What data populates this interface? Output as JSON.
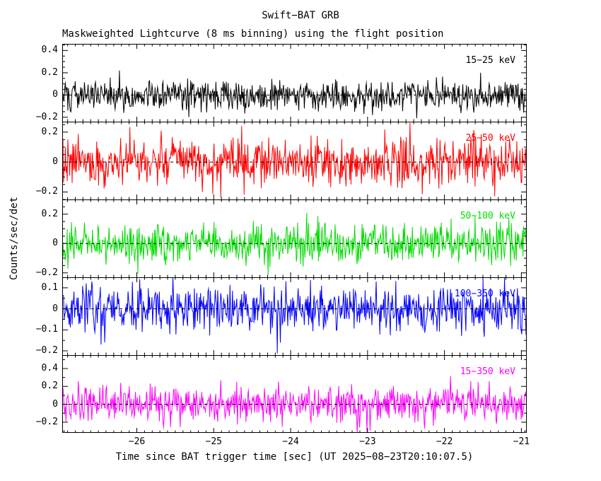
{
  "title": "Swift−BAT GRB",
  "subtitle": "Maskweighted Lightcurve (8 ms binning) using the flight position",
  "xlabel": "Time since BAT trigger time [sec] (UT 2025−08−23T20:10:07.5)",
  "ylabel": "Counts/sec/det",
  "chart_data": {
    "type": "line",
    "title": "Swift−BAT GRB",
    "subtitle": "Maskweighted Lightcurve (8 ms binning) using the flight position",
    "xlabel": "Time since BAT trigger time [sec] (UT 2025−08−23T20:10:07.5)",
    "ylabel": "Counts/sec/det",
    "x_range": [
      -26.97,
      -20.93
    ],
    "x_ticks": [
      -26,
      -25,
      -24,
      -23,
      -22,
      -21
    ],
    "x_minor_step": 0.1,
    "bin_sec": 0.008,
    "grid": false,
    "legend_position": "inside-top-right-per-panel",
    "zero_line": {
      "style": "dashed",
      "color": "#000000",
      "value": 0
    },
    "panels": [
      {
        "label": "15−25 keV",
        "color": "#000000",
        "y_range": [
          -0.24,
          0.46
        ],
        "y_ticks": [
          0.4,
          0.2,
          0,
          -0.2
        ],
        "y_minor_step": 0.05,
        "mean": 0,
        "noise_sigma": 0.068,
        "seed": 101
      },
      {
        "label": "25−50 keV",
        "color": "#ff0000",
        "y_range": [
          -0.25,
          0.27
        ],
        "y_ticks": [
          0.2,
          0,
          -0.2
        ],
        "y_minor_step": 0.05,
        "mean": 0,
        "noise_sigma": 0.078,
        "seed": 202
      },
      {
        "label": "50−100 keV",
        "color": "#00dd00",
        "y_range": [
          -0.23,
          0.3
        ],
        "y_ticks": [
          0.2,
          0,
          -0.2
        ],
        "y_minor_step": 0.05,
        "mean": 0,
        "noise_sigma": 0.062,
        "seed": 303
      },
      {
        "label": "100−350 keV",
        "color": "#0000ff",
        "y_range": [
          -0.22,
          0.15
        ],
        "y_ticks": [
          0.1,
          0,
          -0.1,
          -0.2
        ],
        "y_minor_step": 0.05,
        "mean": 0,
        "noise_sigma": 0.056,
        "seed": 404
      },
      {
        "label": "15−350 keV",
        "color": "#ff00ff",
        "y_range": [
          -0.32,
          0.55
        ],
        "y_ticks": [
          0.4,
          0.2,
          0,
          -0.2
        ],
        "y_minor_step": 0.1,
        "mean": 0,
        "noise_sigma": 0.105,
        "seed": 505
      }
    ]
  }
}
